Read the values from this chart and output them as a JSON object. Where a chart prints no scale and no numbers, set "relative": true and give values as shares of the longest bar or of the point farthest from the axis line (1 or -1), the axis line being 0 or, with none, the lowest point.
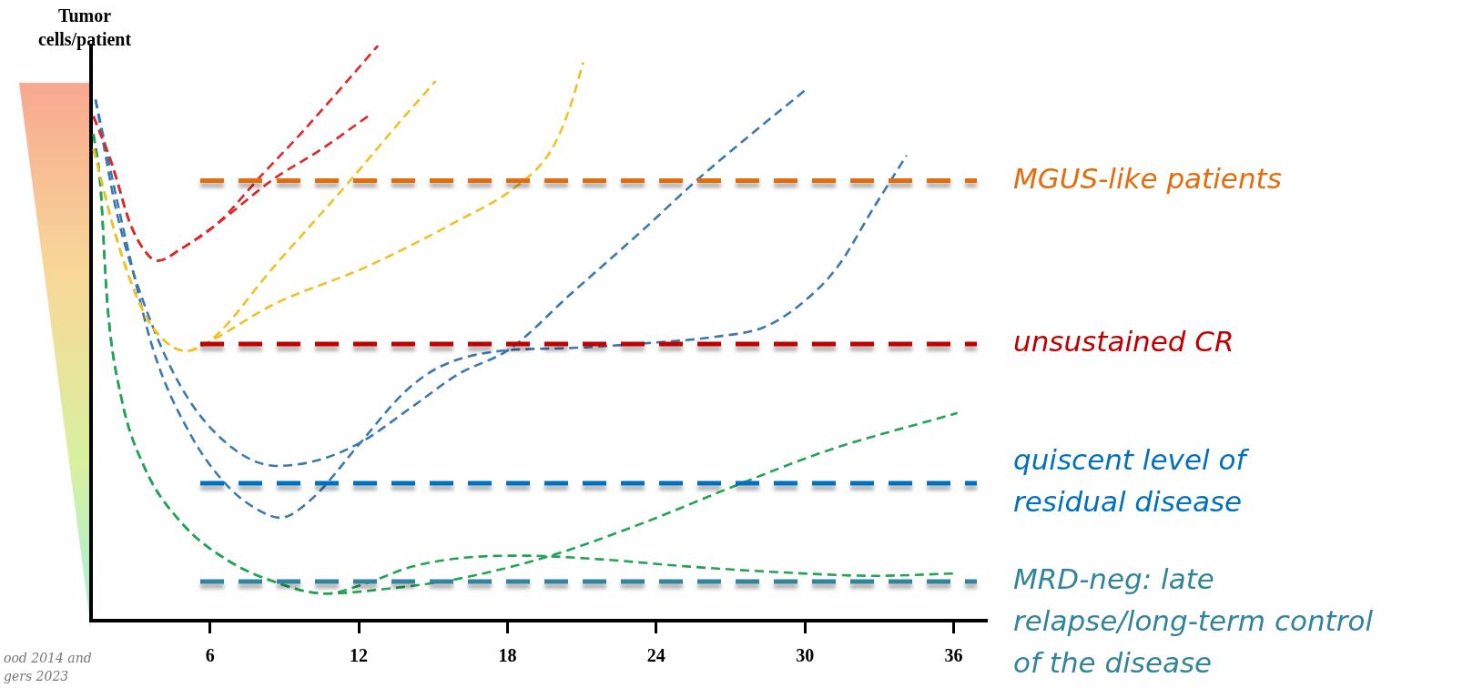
{
  "chart_data": {
    "type": "line",
    "relative": true,
    "ylabel": "Tumor cells/patient",
    "xlim": [
      1.2,
      37.3
    ],
    "xticks": [
      6,
      12,
      18,
      24,
      30,
      36
    ],
    "legend": false,
    "grid": false,
    "tick_labels": "x",
    "marker": "none",
    "line_style": "dashed",
    "series": [
      {
        "color": "#e02626",
        "x": [
          1.3,
          2.05,
          2.8,
          3.54,
          3.91,
          4.85,
          6.26,
          8.05,
          9.73,
          12.78
        ],
        "values": [
          0.877,
          0.793,
          0.688,
          0.634,
          0.626,
          0.647,
          0.689,
          0.773,
          0.85,
          1
        ]
      },
      {
        "color": "#e02626",
        "x": [
          1.3,
          2.05,
          2.8,
          3.54,
          3.91,
          4.85,
          6.26,
          8.6,
          10.4,
          12.37
        ],
        "values": [
          0.877,
          0.793,
          0.688,
          0.634,
          0.626,
          0.647,
          0.689,
          0.769,
          0.817,
          0.877
        ]
      },
      {
        "color": "#efc125",
        "x": [
          1.3,
          2.24,
          3.35,
          4.29,
          5.03,
          5.96,
          8.57,
          11.55,
          13.79,
          15.1
        ],
        "values": [
          0.82,
          0.663,
          0.534,
          0.482,
          0.469,
          0.485,
          0.615,
          0.76,
          0.874,
          0.938
        ]
      },
      {
        "color": "#efc125",
        "x": [
          1.3,
          2.24,
          3.35,
          4.29,
          5.03,
          5.96,
          8.57,
          12.3,
          16.03,
          18.26,
          19.75,
          20.5,
          21.06
        ],
        "values": [
          0.82,
          0.663,
          0.534,
          0.482,
          0.469,
          0.485,
          0.55,
          0.615,
          0.696,
          0.752,
          0.817,
          0.89,
          0.971
        ]
      },
      {
        "color": "#3a78b0",
        "x": [
          1.38,
          2.61,
          3.73,
          5.22,
          6.71,
          8.01,
          8.83,
          10.06,
          12.08,
          13.79,
          15.21,
          17.52,
          20.5,
          23.48,
          26.46,
          28.33,
          29.82,
          31.31,
          32.8,
          34.1
        ],
        "values": [
          0.906,
          0.661,
          0.468,
          0.323,
          0.234,
          0.191,
          0.179,
          0.21,
          0.31,
          0.395,
          0.44,
          0.468,
          0.474,
          0.482,
          0.494,
          0.51,
          0.55,
          0.615,
          0.72,
          0.809
        ]
      },
      {
        "color": "#3a78b0",
        "x": [
          1.38,
          2.24,
          3.35,
          4.85,
          6.71,
          8.68,
          10.44,
          12.08,
          14.16,
          16.03,
          18.08,
          20.5,
          23.48,
          25.72,
          27.95,
          30.0
        ],
        "values": [
          0.906,
          0.709,
          0.55,
          0.405,
          0.307,
          0.269,
          0.28,
          0.31,
          0.372,
          0.429,
          0.472,
          0.566,
          0.68,
          0.769,
          0.85,
          0.922
        ]
      },
      {
        "color": "#22a455",
        "x": [
          1.3,
          1.57,
          1.86,
          2.42,
          3.35,
          4.85,
          6.71,
          8.57,
          10.66,
          13.04,
          16.03,
          19.75,
          23.48,
          27.21,
          30.93,
          36.15
        ],
        "values": [
          0.846,
          0.761,
          0.55,
          0.388,
          0.267,
          0.17,
          0.105,
          0.068,
          0.047,
          0.055,
          0.073,
          0.113,
          0.17,
          0.235,
          0.296,
          0.361
        ]
      },
      {
        "color": "#22a455",
        "x": [
          1.3,
          1.57,
          1.86,
          2.42,
          3.35,
          4.85,
          6.71,
          8.57,
          10.66,
          12.3,
          14.16,
          16.4,
          18.64,
          21.62,
          25.34,
          29.07,
          32.8,
          36.0
        ],
        "values": [
          0.846,
          0.761,
          0.55,
          0.388,
          0.267,
          0.17,
          0.105,
          0.068,
          0.047,
          0.065,
          0.094,
          0.11,
          0.113,
          0.107,
          0.094,
          0.084,
          0.078,
          0.082
        ]
      }
    ],
    "ref_lines": [
      {
        "axis": "y",
        "value": 0.765,
        "label": "MGUS-like patients",
        "color": "#e46c0a",
        "line_style": "dashed"
      },
      {
        "axis": "y",
        "value": 0.481,
        "label": "unsustained CR",
        "color": "#c00000",
        "line_style": "dashed"
      },
      {
        "axis": "y",
        "value": 0.239,
        "label": "quiscent level of\nresidual disease",
        "color": "#0070c0",
        "line_style": "dashed"
      },
      {
        "axis": "y",
        "value": 0.068,
        "label": "MRD-neg: late\nrelapse/long-term control\nof the disease",
        "color": "#31849b",
        "line_style": "dashed"
      }
    ],
    "annotations": [
      "ood 2014 and\ngers 2023"
    ]
  }
}
